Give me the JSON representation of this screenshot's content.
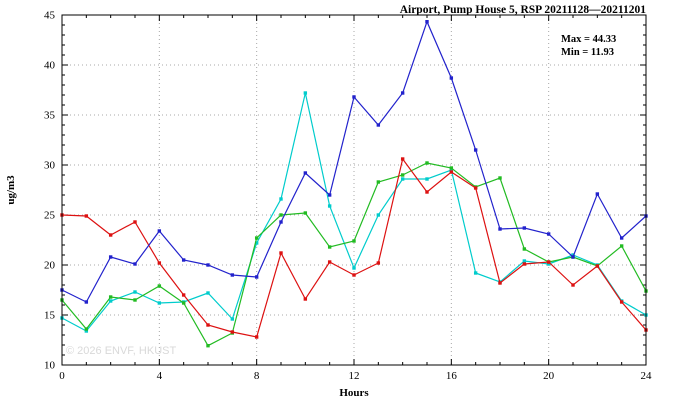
{
  "watermark": "© 2026 ENVF, HKUST",
  "annotation": {
    "max": "Max = 44.33",
    "min": "Min = 11.93"
  },
  "chart_data": {
    "type": "line",
    "title": "Airport, Pump House 5, RSP 20211128—20211201",
    "xlabel": "Hours",
    "ylabel": "ug/m3",
    "xlim": [
      0,
      24
    ],
    "ylim": [
      10,
      45
    ],
    "xticks": [
      0,
      4,
      8,
      12,
      16,
      20,
      24
    ],
    "yticks": [
      10,
      15,
      20,
      25,
      30,
      35,
      40,
      45
    ],
    "grid": "dotted",
    "legend": "none",
    "max": 44.33,
    "min": 11.93,
    "x": [
      0,
      1,
      2,
      3,
      4,
      5,
      6,
      7,
      8,
      9,
      10,
      11,
      12,
      13,
      14,
      15,
      16,
      17,
      18,
      19,
      20,
      21,
      22,
      23,
      24
    ],
    "series": [
      {
        "name": "series-cyan",
        "color": "#00cccc",
        "values": [
          14.7,
          13.4,
          16.4,
          17.3,
          16.2,
          16.3,
          17.2,
          14.6,
          22.2,
          26.6,
          37.2,
          25.9,
          19.7,
          25.0,
          28.6,
          28.6,
          29.5,
          19.2,
          18.3,
          20.4,
          20.1,
          21.0,
          20.0,
          16.4,
          15.0
        ]
      },
      {
        "name": "series-green",
        "color": "#22bb22",
        "values": [
          16.5,
          13.6,
          16.8,
          16.5,
          17.9,
          16.2,
          11.93,
          13.2,
          22.7,
          25.0,
          25.2,
          21.8,
          22.4,
          28.3,
          29.0,
          30.2,
          29.7,
          27.8,
          28.7,
          21.6,
          20.3,
          20.8,
          19.9,
          21.9,
          17.4
        ]
      },
      {
        "name": "series-red",
        "color": "#dd1111",
        "values": [
          25.0,
          24.9,
          23.0,
          24.3,
          20.2,
          17.0,
          14.0,
          13.3,
          12.8,
          21.2,
          16.6,
          20.3,
          19.0,
          20.2,
          30.6,
          27.3,
          29.3,
          27.7,
          18.2,
          20.1,
          20.3,
          18.0,
          19.9,
          16.3,
          13.5
        ]
      },
      {
        "name": "series-blue",
        "color": "#2222cc",
        "values": [
          17.5,
          16.3,
          20.8,
          20.1,
          23.4,
          20.5,
          20.0,
          19.0,
          18.8,
          24.3,
          29.2,
          27.0,
          36.8,
          34.0,
          37.2,
          44.33,
          38.7,
          31.5,
          23.6,
          23.7,
          23.1,
          20.8,
          27.1,
          22.7,
          24.9
        ]
      }
    ]
  }
}
